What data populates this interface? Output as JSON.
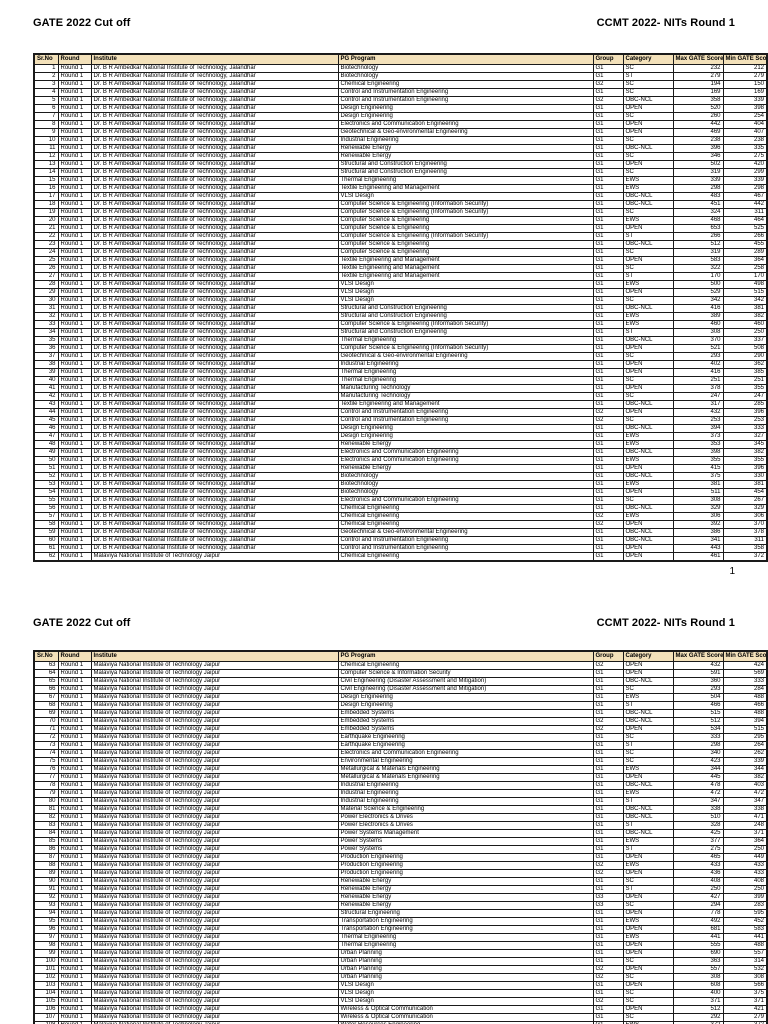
{
  "header_left": "GATE 2022 Cut off",
  "header_right": "CCMT 2022- NITs Round 1",
  "page1_page_number": "1",
  "columns": [
    "Sr.No",
    "Round",
    "Institute",
    "PG Program",
    "Group",
    "Category",
    "Max GATE Score",
    "Min GATE Score"
  ],
  "round_label": "Round 1",
  "institutes": {
    "A": "Dr. B R Ambedkar National Institute of Technology, Jalandhar",
    "B": "Malaviya National Institute of Technology Jaipur"
  },
  "colors": {
    "header_bg": "#f3e1ba",
    "border": "#1a1a1a",
    "page_bg": "#ffffff"
  },
  "page1_rows": [
    [
      1,
      "A",
      "Biotechnology",
      "G1",
      "SC",
      232,
      212
    ],
    [
      2,
      "A",
      "Biotechnology",
      "G1",
      "ST",
      279,
      279
    ],
    [
      3,
      "A",
      "Chemical Engineering",
      "G2",
      "SC",
      194,
      150
    ],
    [
      4,
      "A",
      "Control and Instrumentation Engineering",
      "G1",
      "SC",
      169,
      169
    ],
    [
      5,
      "A",
      "Control and Instrumentation Engineering",
      "G2",
      "OBC-NCL",
      358,
      339
    ],
    [
      6,
      "A",
      "Design Engineering",
      "G1",
      "OPEN",
      520,
      398
    ],
    [
      7,
      "A",
      "Design Engineering",
      "G1",
      "SC",
      260,
      254
    ],
    [
      8,
      "A",
      "Electronics and Communication Engineering",
      "G1",
      "OPEN",
      442,
      404
    ],
    [
      9,
      "A",
      "Geotechnical & Geo-environmental Engineering",
      "G1",
      "OPEN",
      469,
      407
    ],
    [
      10,
      "A",
      "Industrial Engineering",
      "G1",
      "SC",
      238,
      238
    ],
    [
      11,
      "A",
      "Renewable Energy",
      "G1",
      "OBC-NCL",
      396,
      335
    ],
    [
      12,
      "A",
      "Renewable Energy",
      "G1",
      "SC",
      346,
      275
    ],
    [
      13,
      "A",
      "Structural and Construction Engineering",
      "G1",
      "OPEN",
      502,
      420
    ],
    [
      14,
      "A",
      "Structural and Construction Engineering",
      "G1",
      "SC",
      319,
      299
    ],
    [
      15,
      "A",
      "Thermal Engineering",
      "G1",
      "EWS",
      339,
      339
    ],
    [
      16,
      "A",
      "Textile Engineering and Management",
      "G1",
      "EWS",
      298,
      298
    ],
    [
      17,
      "A",
      "VLSI Design",
      "G1",
      "OBC-NCL",
      483,
      467
    ],
    [
      18,
      "A",
      "Computer Science & Engineering (Information Security)",
      "G1",
      "OBC-NCL",
      451,
      442
    ],
    [
      19,
      "A",
      "Computer Science & Engineering (Information Security)",
      "G1",
      "SC",
      324,
      311
    ],
    [
      20,
      "A",
      "Computer Science & Engineering",
      "G1",
      "EWS",
      468,
      464
    ],
    [
      21,
      "A",
      "Computer Science & Engineering",
      "G1",
      "OPEN",
      653,
      525
    ],
    [
      22,
      "A",
      "Computer Science & Engineering (Information Security)",
      "G1",
      "ST",
      266,
      266
    ],
    [
      23,
      "A",
      "Computer Science & Engineering",
      "G1",
      "OBC-NCL",
      512,
      455
    ],
    [
      24,
      "A",
      "Computer Science & Engineering",
      "G1",
      "SC",
      319,
      289
    ],
    [
      25,
      "A",
      "Textile Engineering and Management",
      "G1",
      "OPEN",
      583,
      364
    ],
    [
      26,
      "A",
      "Textile Engineering and Management",
      "G1",
      "SC",
      322,
      258
    ],
    [
      27,
      "A",
      "Textile Engineering and Management",
      "G1",
      "ST",
      170,
      170
    ],
    [
      28,
      "A",
      "VLSI Design",
      "G1",
      "EWS",
      500,
      498
    ],
    [
      29,
      "A",
      "VLSI Design",
      "G1",
      "OPEN",
      529,
      515
    ],
    [
      30,
      "A",
      "VLSI Design",
      "G1",
      "SC",
      342,
      342
    ],
    [
      31,
      "A",
      "Structural and Construction Engineering",
      "G1",
      "OBC-NCL",
      416,
      381
    ],
    [
      32,
      "A",
      "Structural and Construction Engineering",
      "G1",
      "EWS",
      389,
      382
    ],
    [
      33,
      "A",
      "Computer Science & Engineering (Information Security)",
      "G1",
      "EWS",
      460,
      460
    ],
    [
      34,
      "A",
      "Structural and Construction Engineering",
      "G1",
      "ST",
      308,
      250
    ],
    [
      35,
      "A",
      "Thermal Engineering",
      "G1",
      "OBC-NCL",
      370,
      337
    ],
    [
      36,
      "A",
      "Computer Science & Engineering (Information Security)",
      "G1",
      "OPEN",
      521,
      508
    ],
    [
      37,
      "A",
      "Geotechnical & Geo-environmental Engineering",
      "G1",
      "SC",
      293,
      290
    ],
    [
      38,
      "A",
      "Industrial Engineering",
      "G1",
      "OPEN",
      402,
      362
    ],
    [
      39,
      "A",
      "Thermal Engineering",
      "G1",
      "OPEN",
      416,
      385
    ],
    [
      40,
      "A",
      "Thermal Engineering",
      "G1",
      "SC",
      251,
      251
    ],
    [
      41,
      "A",
      "Manufacturing Technology",
      "G1",
      "OPEN",
      378,
      355
    ],
    [
      42,
      "A",
      "Manufacturing Technology",
      "G1",
      "SC",
      247,
      247
    ],
    [
      43,
      "A",
      "Textile Engineering and Management",
      "G1",
      "OBC-NCL",
      317,
      285
    ],
    [
      44,
      "A",
      "Control and Instrumentation Engineering",
      "G2",
      "OPEN",
      432,
      396
    ],
    [
      45,
      "A",
      "Control and Instrumentation Engineering",
      "G2",
      "SC",
      253,
      253
    ],
    [
      46,
      "A",
      "Design Engineering",
      "G1",
      "OBC-NCL",
      394,
      333
    ],
    [
      47,
      "A",
      "Design Engineering",
      "G1",
      "EWS",
      373,
      327
    ],
    [
      48,
      "A",
      "Renewable Energy",
      "G1",
      "EWS",
      353,
      345
    ],
    [
      49,
      "A",
      "Electronics and Communication Engineering",
      "G1",
      "OBC-NCL",
      398,
      382
    ],
    [
      50,
      "A",
      "Electronics and Communication Engineering",
      "G1",
      "EWS",
      355,
      355
    ],
    [
      51,
      "A",
      "Renewable Energy",
      "G1",
      "OPEN",
      415,
      396
    ],
    [
      52,
      "A",
      "Biotechnology",
      "G1",
      "OBC-NCL",
      375,
      330
    ],
    [
      53,
      "A",
      "Biotechnology",
      "G1",
      "EWS",
      381,
      381
    ],
    [
      54,
      "A",
      "Biotechnology",
      "G1",
      "OPEN",
      511,
      454
    ],
    [
      55,
      "A",
      "Electronics and Communication Engineering",
      "G1",
      "SC",
      308,
      267
    ],
    [
      56,
      "A",
      "Chemical Engineering",
      "G1",
      "OBC-NCL",
      329,
      329
    ],
    [
      57,
      "A",
      "Chemical Engineering",
      "G2",
      "EWS",
      306,
      306
    ],
    [
      58,
      "A",
      "Chemical Engineering",
      "G2",
      "OPEN",
      392,
      370
    ],
    [
      59,
      "A",
      "Geotechnical & Geo-environmental Engineering",
      "G1",
      "OBC-NCL",
      386,
      378
    ],
    [
      60,
      "A",
      "Control and Instrumentation Engineering",
      "G1",
      "OBC-NCL",
      341,
      311
    ],
    [
      61,
      "A",
      "Control and Instrumentation Engineering",
      "G1",
      "OPEN",
      443,
      358
    ],
    [
      62,
      "B",
      "Chemical Engineering",
      "G1",
      "OPEN",
      461,
      372
    ]
  ],
  "page2_rows": [
    [
      63,
      "B",
      "Chemical Engineering",
      "G2",
      "OPEN",
      432,
      424
    ],
    [
      64,
      "B",
      "Computer Science & Information Security",
      "G1",
      "OPEN",
      591,
      569
    ],
    [
      65,
      "B",
      "Civil Engineering (Disaster Assessment and Mitigation)",
      "G1",
      "OBC-NCL",
      360,
      333
    ],
    [
      66,
      "B",
      "Civil Engineering (Disaster Assessment and Mitigation)",
      "G1",
      "SC",
      293,
      284
    ],
    [
      67,
      "B",
      "Design Engineering",
      "G1",
      "EWS",
      504,
      488
    ],
    [
      68,
      "B",
      "Design Engineering",
      "G1",
      "ST",
      466,
      466
    ],
    [
      69,
      "B",
      "Embedded Systems",
      "G1",
      "OBC-NCL",
      515,
      488
    ],
    [
      70,
      "B",
      "Embedded Systems",
      "G2",
      "OBC-NCL",
      512,
      394
    ],
    [
      71,
      "B",
      "Embedded Systems",
      "G2",
      "OPEN",
      534,
      515
    ],
    [
      72,
      "B",
      "Earthquake Engineering",
      "G1",
      "SC",
      333,
      295
    ],
    [
      73,
      "B",
      "Earthquake Engineering",
      "G1",
      "ST",
      298,
      264
    ],
    [
      74,
      "B",
      "Electronics and Communication Engineering",
      "G1",
      "SC",
      340,
      262
    ],
    [
      75,
      "B",
      "Environmental Engineering",
      "G1",
      "SC",
      423,
      339
    ],
    [
      76,
      "B",
      "Metallurgical & Materials Engineering",
      "G1",
      "EWS",
      344,
      344
    ],
    [
      77,
      "B",
      "Metallurgical & Materials Engineering",
      "G1",
      "OPEN",
      445,
      382
    ],
    [
      78,
      "B",
      "Industrial Engineering",
      "G1",
      "OBC-NCL",
      478,
      403
    ],
    [
      79,
      "B",
      "Industrial Engineering",
      "G1",
      "EWS",
      472,
      472
    ],
    [
      80,
      "B",
      "Industrial Engineering",
      "G1",
      "ST",
      347,
      347
    ],
    [
      81,
      "B",
      "Material Science & Engineering",
      "G1",
      "OBC-NCL",
      338,
      338
    ],
    [
      82,
      "B",
      "Power Electronics & Drives",
      "G1",
      "OBC-NCL",
      510,
      471
    ],
    [
      83,
      "B",
      "Power Electronics & Drives",
      "G1",
      "ST",
      328,
      248
    ],
    [
      84,
      "B",
      "Power Systems Management",
      "G1",
      "OBC-NCL",
      425,
      371
    ],
    [
      85,
      "B",
      "Power Systems",
      "G1",
      "EWS",
      377,
      364
    ],
    [
      86,
      "B",
      "Power Systems",
      "G1",
      "ST",
      275,
      250
    ],
    [
      87,
      "B",
      "Production Engineering",
      "G1",
      "OPEN",
      465,
      449
    ],
    [
      88,
      "B",
      "Production Engineering",
      "G2",
      "EWS",
      433,
      433
    ],
    [
      89,
      "B",
      "Production Engineering",
      "G2",
      "OPEN",
      436,
      433
    ],
    [
      90,
      "B",
      "Renewable Energy",
      "G1",
      "SC",
      408,
      408
    ],
    [
      91,
      "B",
      "Renewable Energy",
      "G1",
      "ST",
      250,
      250
    ],
    [
      92,
      "B",
      "Renewable Energy",
      "G3",
      "OPEN",
      427,
      399
    ],
    [
      93,
      "B",
      "Renewable Energy",
      "G3",
      "SC",
      294,
      283
    ],
    [
      94,
      "B",
      "Structural Engineering",
      "G1",
      "OPEN",
      778,
      595
    ],
    [
      95,
      "B",
      "Transportation Engineering",
      "G1",
      "EWS",
      492,
      452
    ],
    [
      96,
      "B",
      "Transportation Engineering",
      "G1",
      "OPEN",
      681,
      583
    ],
    [
      97,
      "B",
      "Thermal Engineering",
      "G1",
      "EWS",
      441,
      441
    ],
    [
      98,
      "B",
      "Thermal Engineering",
      "G1",
      "OPEN",
      555,
      488
    ],
    [
      99,
      "B",
      "Urban Planning",
      "G1",
      "OPEN",
      690,
      557
    ],
    [
      100,
      "B",
      "Urban Planning",
      "G1",
      "SC",
      363,
      314
    ],
    [
      101,
      "B",
      "Urban Planning",
      "G2",
      "OPEN",
      557,
      532
    ],
    [
      102,
      "B",
      "Urban Planning",
      "G2",
      "SC",
      308,
      308
    ],
    [
      103,
      "B",
      "VLSI Design",
      "G1",
      "OPEN",
      608,
      566
    ],
    [
      104,
      "B",
      "VLSI Design",
      "G1",
      "SC",
      400,
      375
    ],
    [
      105,
      "B",
      "VLSI Design",
      "G2",
      "SC",
      371,
      371
    ],
    [
      106,
      "B",
      "Wireless & Optical Communication",
      "G1",
      "OPEN",
      512,
      421
    ],
    [
      107,
      "B",
      "Wireless & Optical Communication",
      "G1",
      "SC",
      292,
      279
    ],
    [
      108,
      "B",
      "Water Resources Engineering",
      "G1",
      "EWS",
      372,
      372
    ],
    [
      109,
      "B",
      "Water Resources Engineering",
      "G1",
      "ST",
      357,
      357
    ],
    [
      110,
      "B",
      "Computer Science & Engineering",
      "G1",
      "SC",
      403,
      398
    ]
  ]
}
